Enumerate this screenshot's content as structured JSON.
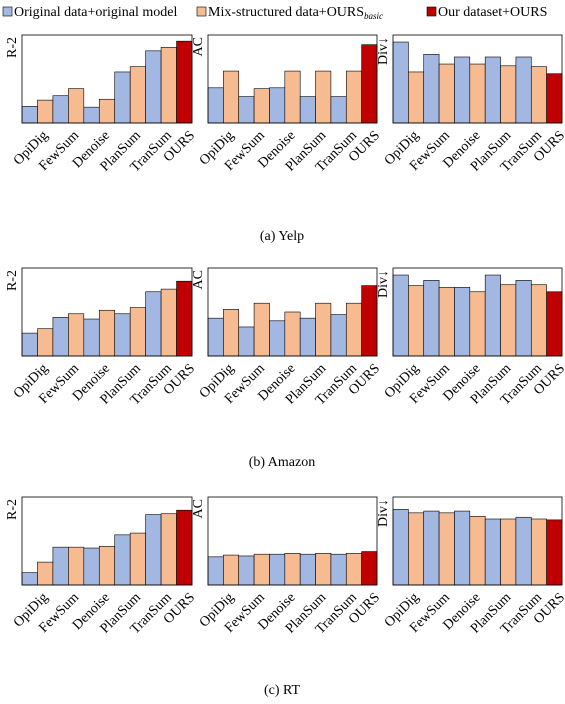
{
  "legend": [
    {
      "name": "Original data+original model",
      "color": "#a3b7e3"
    },
    {
      "name": "Mix-structured data+OURS",
      "subscript": "basic",
      "color": "#f6bb91"
    },
    {
      "name": "Our dataset+OURS",
      "color": "#c00000"
    }
  ],
  "captions": [
    "(a) Yelp",
    "(b) Amazon",
    "(c) RT"
  ],
  "chart_data": [
    {
      "type": "bar",
      "ylabel": "R-2",
      "ylim": [
        0,
        100
      ],
      "categories": [
        "OpiDig",
        "FewSum",
        "Denoise",
        "PlanSum",
        "TranSum",
        "OURS"
      ],
      "series": [
        {
          "values": [
            19,
            31,
            18,
            58,
            82,
            null
          ]
        },
        {
          "values": [
            26,
            39,
            27,
            64,
            86,
            null
          ]
        },
        {
          "values": [
            null,
            null,
            null,
            null,
            null,
            93
          ]
        }
      ]
    },
    {
      "type": "bar",
      "ylabel": "AC",
      "ylim": [
        0,
        100
      ],
      "categories": [
        "OpiDig",
        "FewSum",
        "Denoise",
        "PlanSum",
        "TranSum",
        "OURS"
      ],
      "series": [
        {
          "values": [
            40,
            30,
            40,
            30,
            30,
            null
          ]
        },
        {
          "values": [
            59,
            39,
            59,
            59,
            59,
            null
          ]
        },
        {
          "values": [
            null,
            null,
            null,
            null,
            null,
            89
          ]
        }
      ]
    },
    {
      "type": "bar",
      "ylabel": "Div↓",
      "ylim": [
        0,
        100
      ],
      "categories": [
        "OpiDig",
        "FewSum",
        "Denoise",
        "PlanSum",
        "TranSum",
        "OURS"
      ],
      "series": [
        {
          "values": [
            92,
            78,
            75,
            75,
            75,
            null
          ]
        },
        {
          "values": [
            58,
            67,
            67,
            65,
            64,
            null
          ]
        },
        {
          "values": [
            null,
            null,
            null,
            null,
            null,
            56
          ]
        }
      ]
    },
    {
      "type": "bar",
      "ylabel": "R-2",
      "ylim": [
        0,
        100
      ],
      "categories": [
        "OpiDig",
        "FewSum",
        "Denoise",
        "PlanSum",
        "TranSum",
        "OURS"
      ],
      "series": [
        {
          "values": [
            26,
            44,
            42,
            48,
            73,
            null
          ]
        },
        {
          "values": [
            31,
            48,
            52,
            55,
            76,
            null
          ]
        },
        {
          "values": [
            null,
            null,
            null,
            null,
            null,
            85
          ]
        }
      ]
    },
    {
      "type": "bar",
      "ylabel": "AC",
      "ylim": [
        0,
        100
      ],
      "categories": [
        "OpiDig",
        "FewSum",
        "Denoise",
        "PlanSum",
        "TranSum",
        "OURS"
      ],
      "series": [
        {
          "values": [
            43,
            33,
            40,
            43,
            47,
            null
          ]
        },
        {
          "values": [
            53,
            60,
            50,
            60,
            60,
            null
          ]
        },
        {
          "values": [
            null,
            null,
            null,
            null,
            null,
            80
          ]
        }
      ]
    },
    {
      "type": "bar",
      "ylabel": "Div↓",
      "ylim": [
        0,
        100
      ],
      "categories": [
        "OpiDig",
        "FewSum",
        "Denoise",
        "PlanSum",
        "TranSum",
        "OURS"
      ],
      "series": [
        {
          "values": [
            92,
            86,
            78,
            92,
            86,
            null
          ]
        },
        {
          "values": [
            80,
            78,
            73,
            81,
            81,
            null
          ]
        },
        {
          "values": [
            null,
            null,
            null,
            null,
            null,
            73
          ]
        }
      ]
    },
    {
      "type": "bar",
      "ylabel": "R-2",
      "ylim": [
        0,
        100
      ],
      "categories": [
        "OpiDig",
        "FewSum",
        "Denoise",
        "PlanSum",
        "TranSum",
        "OURS"
      ],
      "series": [
        {
          "values": [
            14,
            43,
            42,
            57,
            80,
            null
          ]
        },
        {
          "values": [
            26,
            43,
            44,
            59,
            81,
            null
          ]
        },
        {
          "values": [
            null,
            null,
            null,
            null,
            null,
            85
          ]
        }
      ]
    },
    {
      "type": "bar",
      "ylabel": "AC",
      "ylim": [
        0,
        100
      ],
      "categories": [
        "OpiDig",
        "FewSum",
        "Denoise",
        "PlanSum",
        "TranSum",
        "OURS"
      ],
      "series": [
        {
          "values": [
            32,
            33,
            35,
            35,
            35,
            null
          ]
        },
        {
          "values": [
            34,
            35,
            36,
            36,
            36,
            null
          ]
        },
        {
          "values": [
            null,
            null,
            null,
            null,
            null,
            38
          ]
        }
      ]
    },
    {
      "type": "bar",
      "ylabel": "Div↓",
      "ylim": [
        0,
        100
      ],
      "categories": [
        "OpiDig",
        "FewSum",
        "Denoise",
        "PlanSum",
        "TranSum",
        "OURS"
      ],
      "series": [
        {
          "values": [
            86,
            84,
            84,
            75,
            77,
            null
          ]
        },
        {
          "values": [
            82,
            82,
            78,
            75,
            75,
            null
          ]
        },
        {
          "values": [
            null,
            null,
            null,
            null,
            null,
            74
          ]
        }
      ]
    }
  ]
}
